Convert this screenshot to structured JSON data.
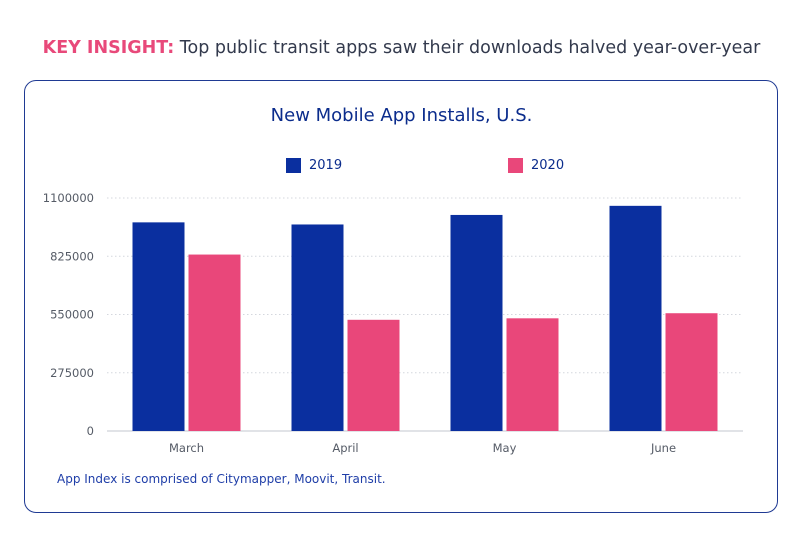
{
  "header": {
    "keyword": "KEY INSIGHT:",
    "text": " Top public transit apps saw their downloads halved year-over-year"
  },
  "footnote": "App Index is comprised of Citymapper, Moovit, Transit.",
  "colors": {
    "series2019": "#0a2f9f",
    "series2020": "#e9477a",
    "border": "#1f3a93"
  },
  "chart_data": {
    "type": "bar",
    "title": "New Mobile App Installs, U.S.",
    "categories": [
      "March",
      "April",
      "May",
      "June"
    ],
    "series": [
      {
        "name": "2019",
        "values": [
          985000,
          975000,
          1020000,
          1063000
        ]
      },
      {
        "name": "2020",
        "values": [
          833000,
          525000,
          532000,
          556000
        ]
      }
    ],
    "ylim": [
      0,
      1100000
    ],
    "yticks": [
      0,
      275000,
      550000,
      825000,
      1100000
    ],
    "grid": true,
    "legend": "top-center"
  }
}
